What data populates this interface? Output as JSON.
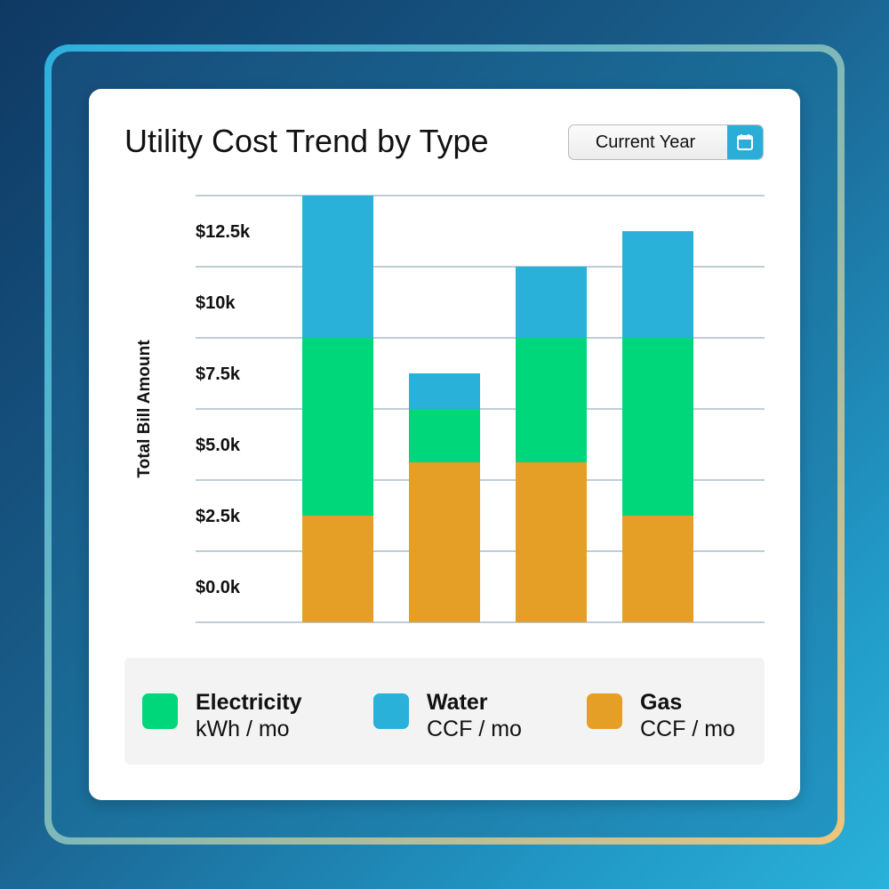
{
  "header": {
    "title": "Utility Cost Trend by Type",
    "date_picker": {
      "value": "Current Year",
      "icon": "calendar-icon"
    }
  },
  "colors": {
    "Electricity": "#00d67a",
    "Water": "#2ab1d9",
    "Gas": "#e59f27",
    "gridline": "#7e9dab"
  },
  "chart_data": {
    "type": "bar",
    "stacked": true,
    "title": "Utility Cost Trend by Type",
    "xlabel": "",
    "ylabel": "Total Bill Amount",
    "ylim": [
      0,
      15000
    ],
    "grid": true,
    "y_tick_labels": [
      "$12.5k",
      "$10k",
      "$7.5k",
      "$5.0k",
      "$2.5k",
      "$0.0k"
    ],
    "categories": [
      "",
      "",
      "",
      ""
    ],
    "series": [
      {
        "name": "Gas",
        "values": [
          3750,
          5625,
          5625,
          3750
        ]
      },
      {
        "name": "Electricity",
        "values": [
          6250,
          1875,
          4375,
          6250
        ]
      },
      {
        "name": "Water",
        "values": [
          5000,
          1250,
          2500,
          3750
        ]
      }
    ],
    "legend_position": "bottom"
  },
  "legend": [
    {
      "name": "Electricity",
      "unit": "kWh / mo",
      "color": "#00d67a"
    },
    {
      "name": "Water",
      "unit": "CCF / mo",
      "color": "#2ab1d9"
    },
    {
      "name": "Gas",
      "unit": "CCF / mo",
      "color": "#e59f27"
    }
  ]
}
